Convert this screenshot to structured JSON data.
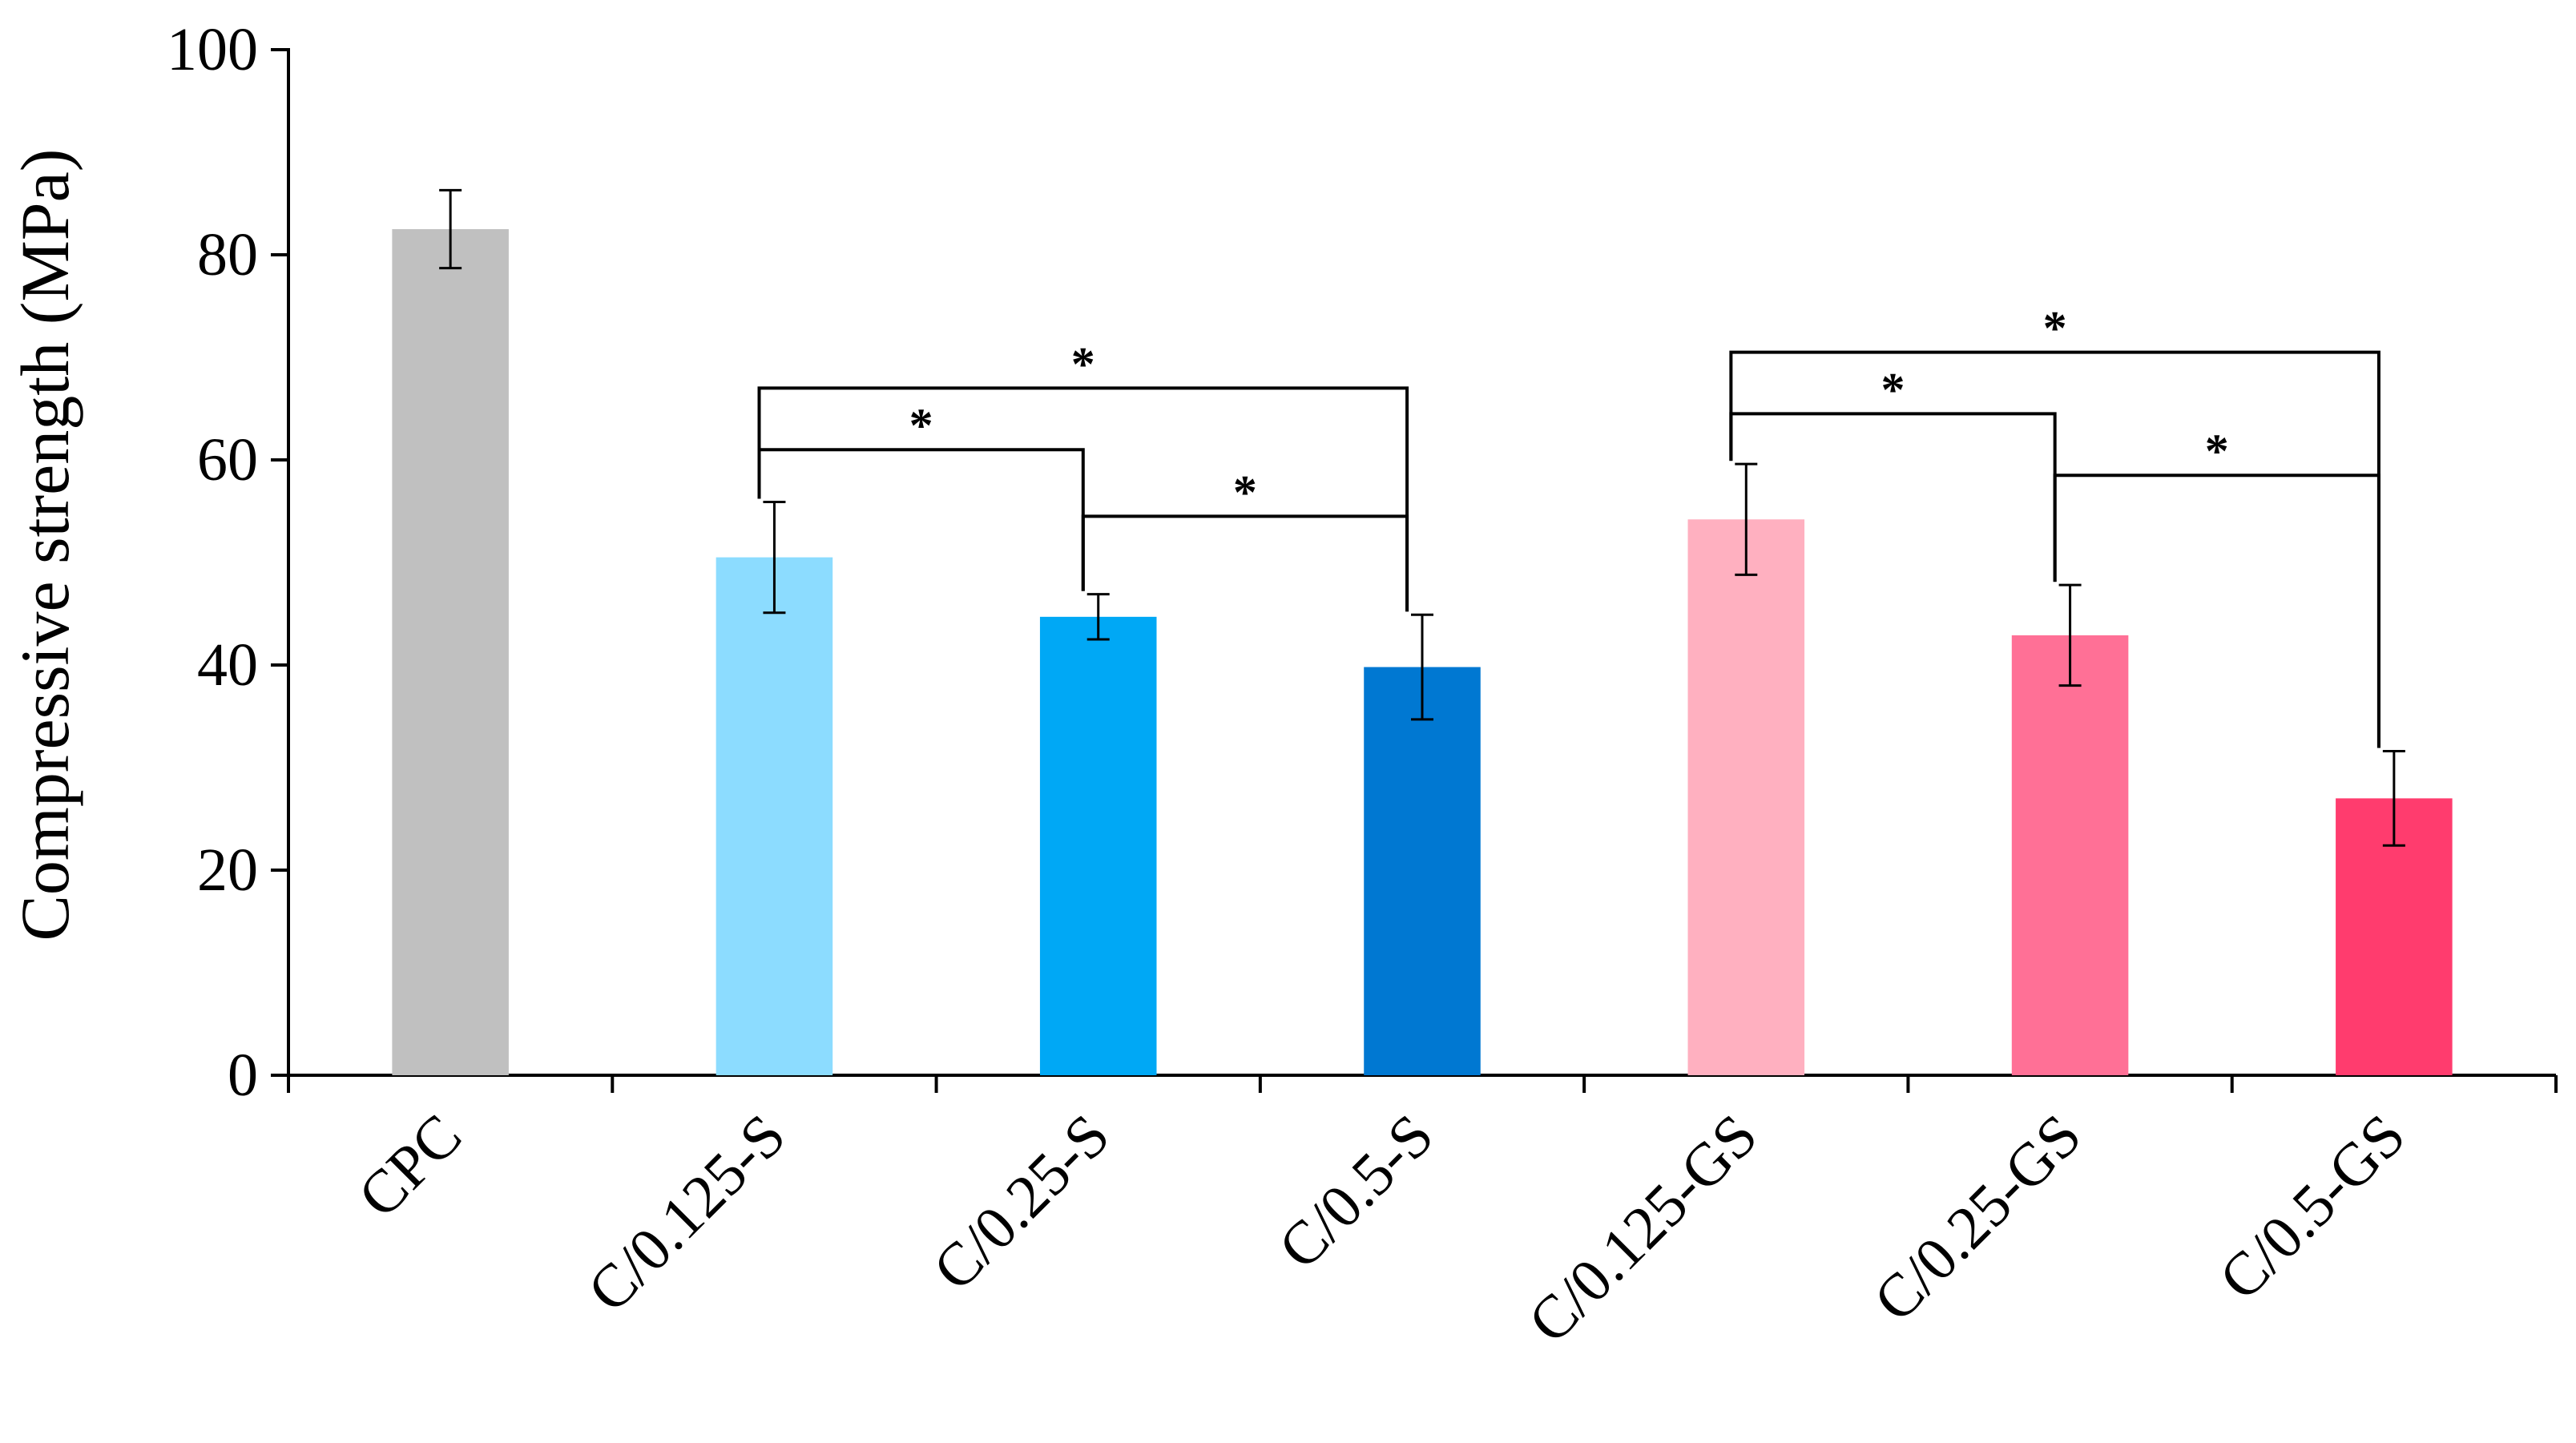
{
  "chart_data": {
    "type": "bar",
    "title": "",
    "xlabel": "",
    "ylabel": "Compressive strength (MPa)",
    "ylim": [
      0,
      100
    ],
    "yticks": [
      0,
      20,
      40,
      60,
      80,
      100
    ],
    "grid": false,
    "legend": "none",
    "categories": [
      "CPC",
      "C/0.125-S",
      "C/0.25-S",
      "C/0.5-S",
      "C/0.125-GS",
      "C/0.25-GS",
      "C/0.5-GS"
    ],
    "values": [
      82.5,
      50.5,
      44.7,
      39.8,
      54.2,
      42.9,
      27.0
    ],
    "errors": [
      3.8,
      5.4,
      2.2,
      5.1,
      5.4,
      4.9,
      4.6
    ],
    "colors": [
      "#c0c0c0",
      "#8cdcff",
      "#00a8f5",
      "#0078d2",
      "#ffb0c0",
      "#ff7096",
      "#ff3c6e"
    ],
    "significance": [
      {
        "from": 1,
        "to": 2,
        "level": 61,
        "label": "*"
      },
      {
        "from": 1,
        "to": 3,
        "level": 67,
        "label": "*"
      },
      {
        "from": 2,
        "to": 3,
        "level": 54.5,
        "label": "*"
      },
      {
        "from": 4,
        "to": 5,
        "level": 64.5,
        "label": "*"
      },
      {
        "from": 4,
        "to": 6,
        "level": 70.5,
        "label": "*"
      },
      {
        "from": 5,
        "to": 6,
        "level": 58.5,
        "label": "*"
      }
    ]
  }
}
